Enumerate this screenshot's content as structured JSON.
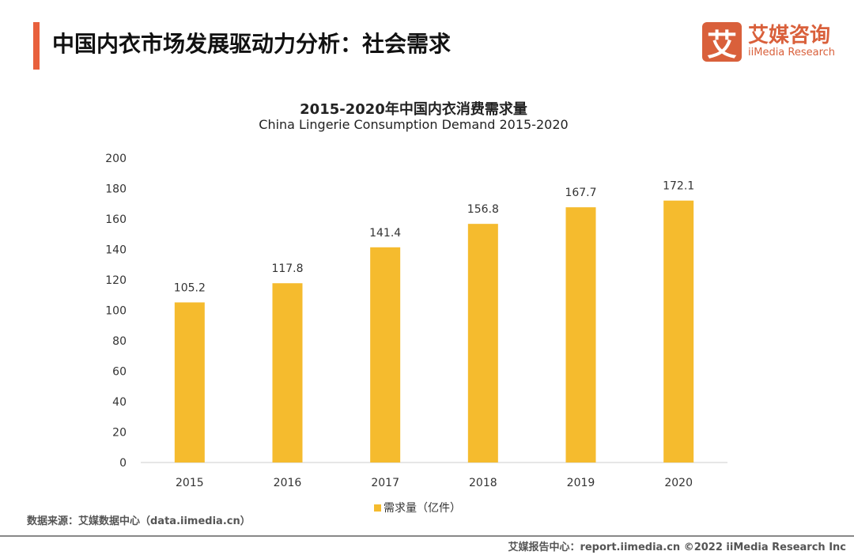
{
  "header": {
    "title": "中国内衣市场发展驱动力分析：社会需求",
    "accent_color": "#e8603c"
  },
  "logo": {
    "mark": "艾",
    "cn": "艾媒咨询",
    "en": "iiMedia Research",
    "color": "#d9603b"
  },
  "chart_data": {
    "type": "bar",
    "title": "2015-2020年中国内衣消费需求量",
    "subtitle": "China Lingerie Consumption Demand 2015-2020",
    "categories": [
      "2015",
      "2016",
      "2017",
      "2018",
      "2019",
      "2020"
    ],
    "series": [
      {
        "name": "需求量（亿件）",
        "values": [
          105.2,
          117.8,
          141.4,
          156.8,
          167.7,
          172.1
        ],
        "color": "#f5bb2e"
      }
    ],
    "ylim": [
      0,
      200
    ],
    "yticks": [
      0,
      20,
      40,
      60,
      80,
      100,
      120,
      140,
      160,
      180,
      200
    ],
    "grid": false,
    "legend": "bottom"
  },
  "source": "数据来源：艾媒数据中心（data.iimedia.cn）",
  "footer": "艾媒报告中心：report.iimedia.cn   ©2022  iiMedia Research  Inc"
}
